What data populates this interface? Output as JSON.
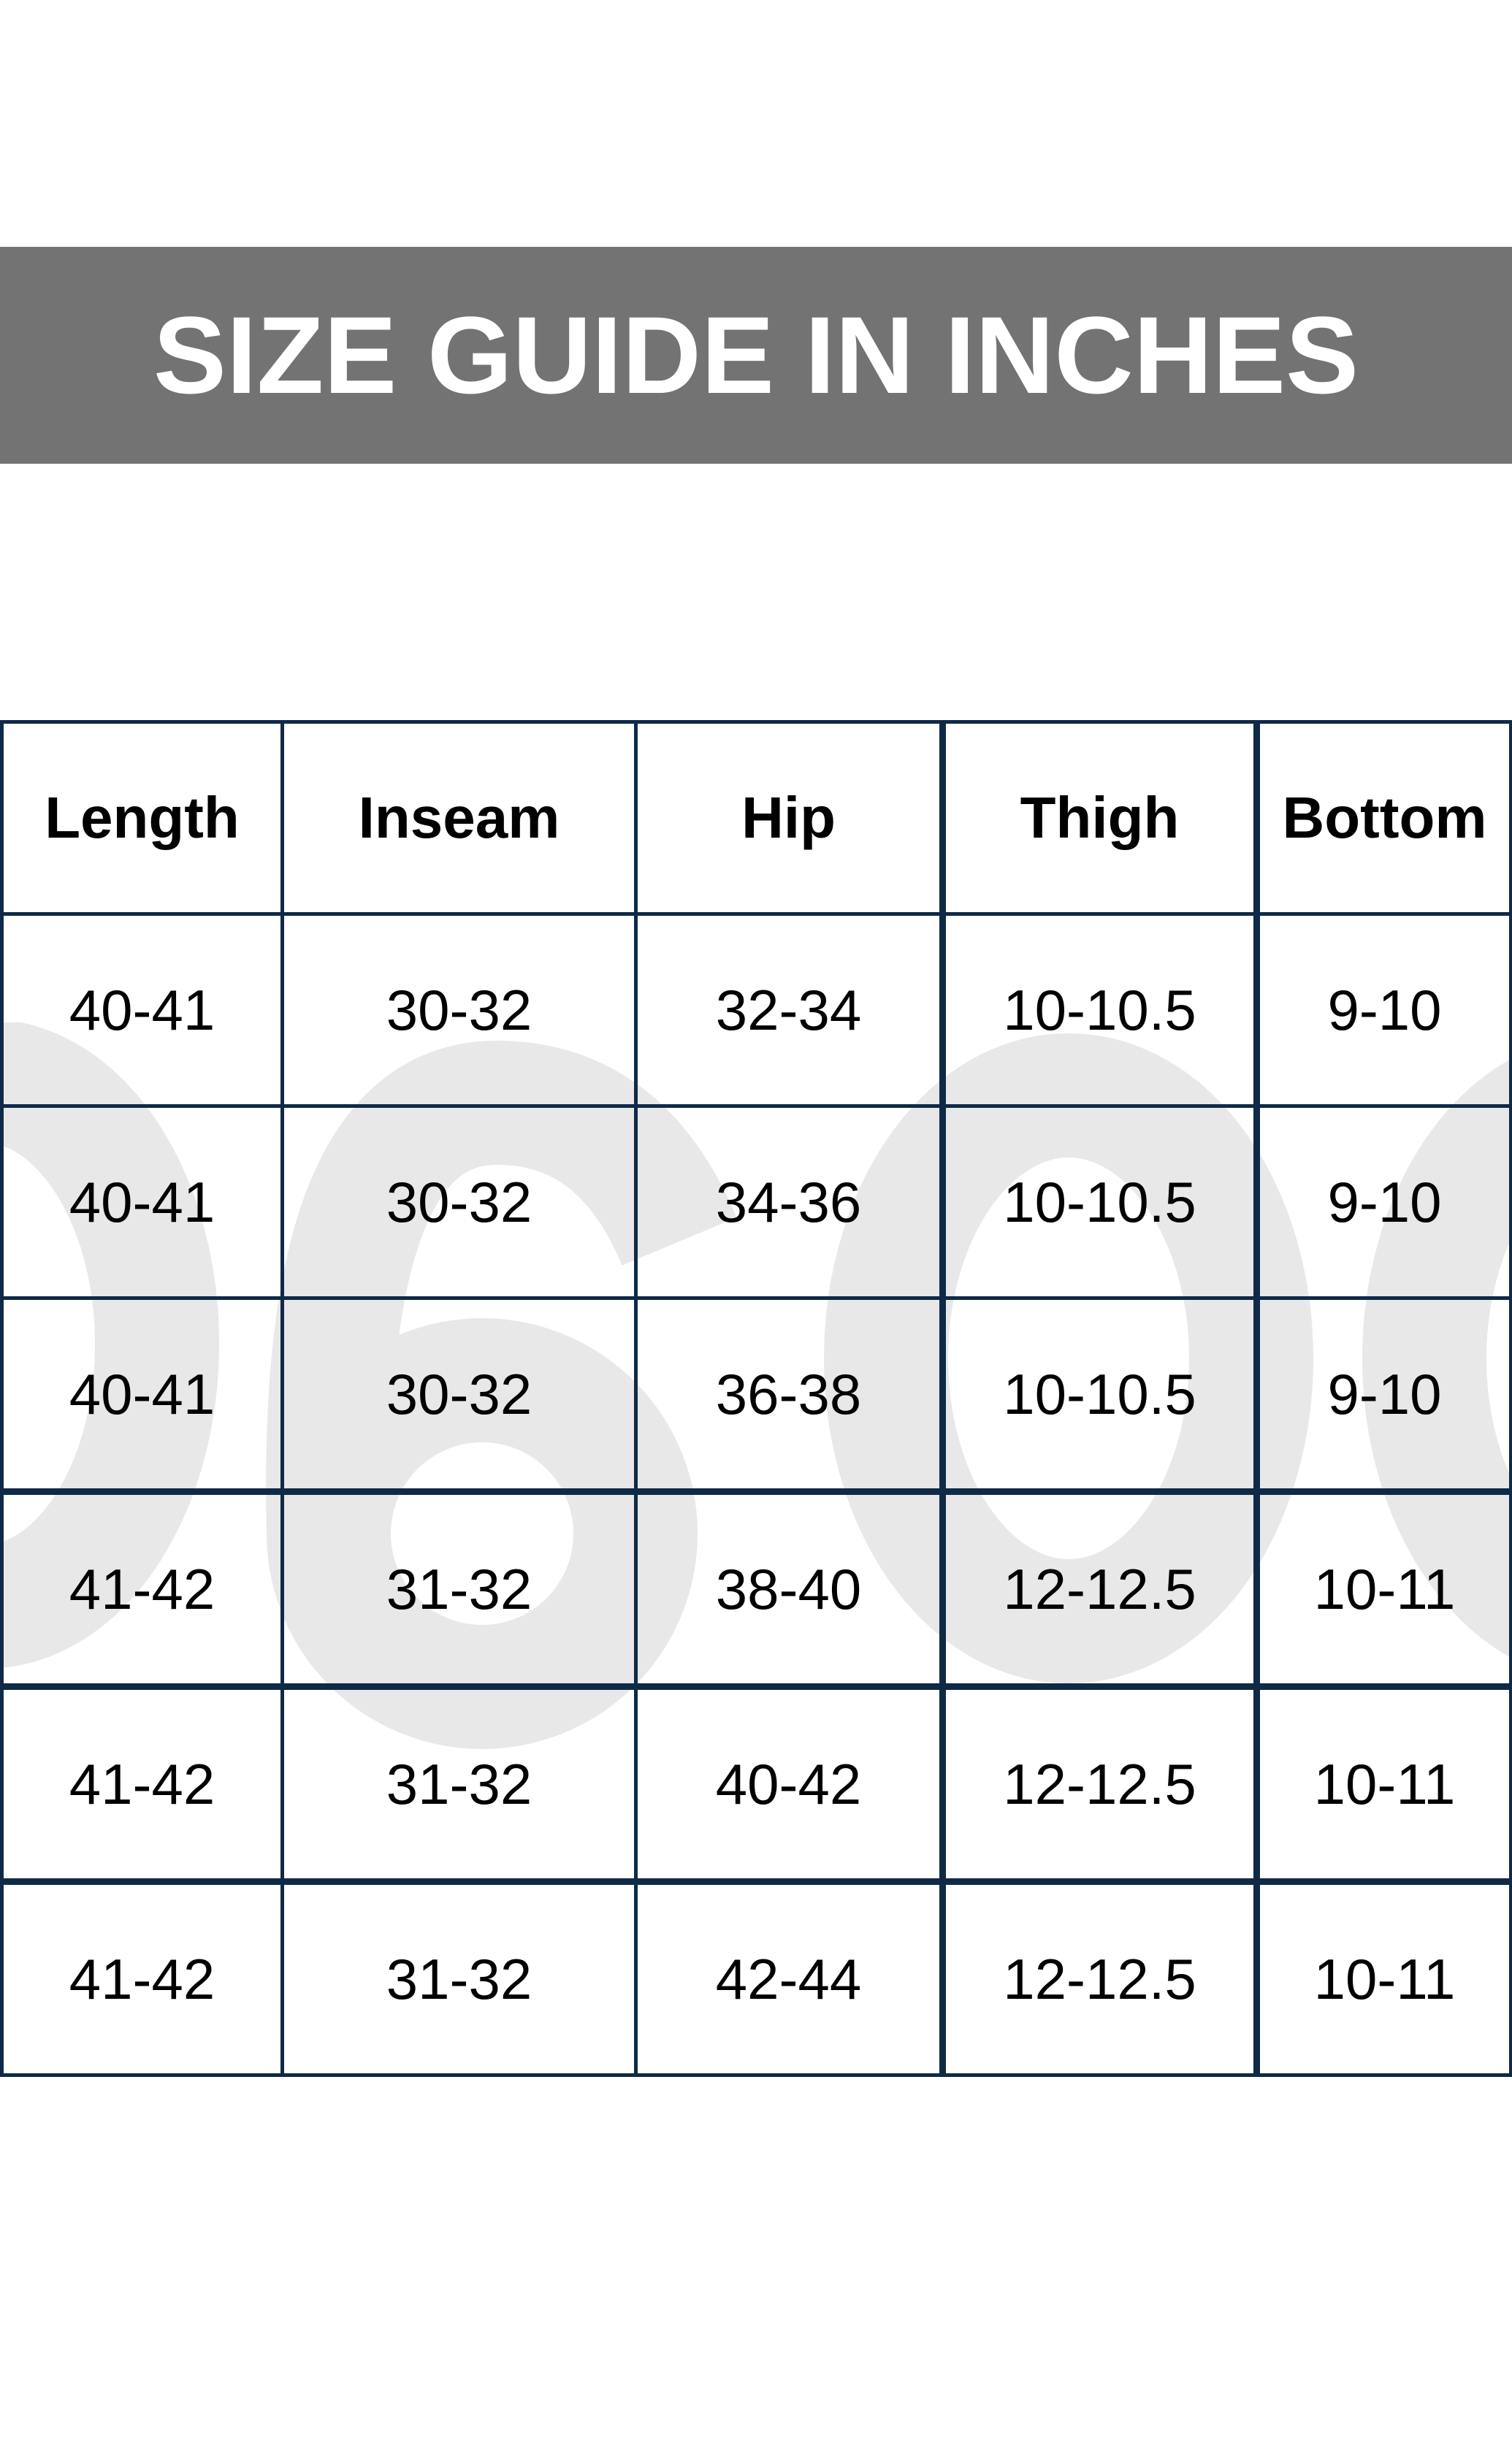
{
  "title": "SIZE GUIDE IN INCHES",
  "watermark": [
    "0",
    "6",
    "0",
    "0"
  ],
  "colors": {
    "banner": "#737373",
    "grid": "#0f2a47",
    "watermark": "#e8e8e8"
  },
  "table": {
    "headers": [
      "Length",
      "Inseam",
      "Hip",
      "Thigh",
      "Bottom"
    ],
    "rows": [
      [
        "40-41",
        "30-32",
        "32-34",
        "10-10.5",
        "9-10"
      ],
      [
        "40-41",
        "30-32",
        "34-36",
        "10-10.5",
        "9-10"
      ],
      [
        "40-41",
        "30-32",
        "36-38",
        "10-10.5",
        "9-10"
      ],
      [
        "41-42",
        "31-32",
        "38-40",
        "12-12.5",
        "10-11"
      ],
      [
        "41-42",
        "31-32",
        "40-42",
        "12-12.5",
        "10-11"
      ],
      [
        "41-42",
        "31-32",
        "42-44",
        "12-12.5",
        "10-11"
      ]
    ]
  }
}
